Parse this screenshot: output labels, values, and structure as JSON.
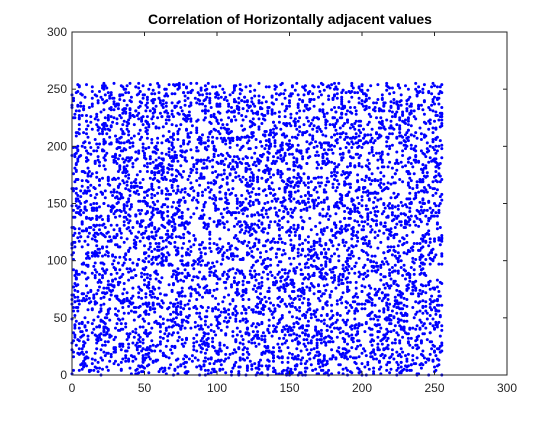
{
  "chart_data": {
    "type": "scatter",
    "title": "Correlation of Horizontally adjacent values",
    "xlabel": "",
    "ylabel": "",
    "xlim": [
      0,
      300
    ],
    "ylim": [
      0,
      300
    ],
    "xticks": [
      0,
      50,
      100,
      150,
      200,
      250,
      300
    ],
    "yticks": [
      0,
      50,
      100,
      150,
      200,
      250,
      300
    ],
    "grid": false,
    "marker_color": "#0000ff",
    "point_count": 6000,
    "points_description": "uniformly scattered over x in [0, 255] and y in [0, 255]",
    "x_range": [
      0,
      255
    ],
    "y_range": [
      0,
      255
    ]
  }
}
